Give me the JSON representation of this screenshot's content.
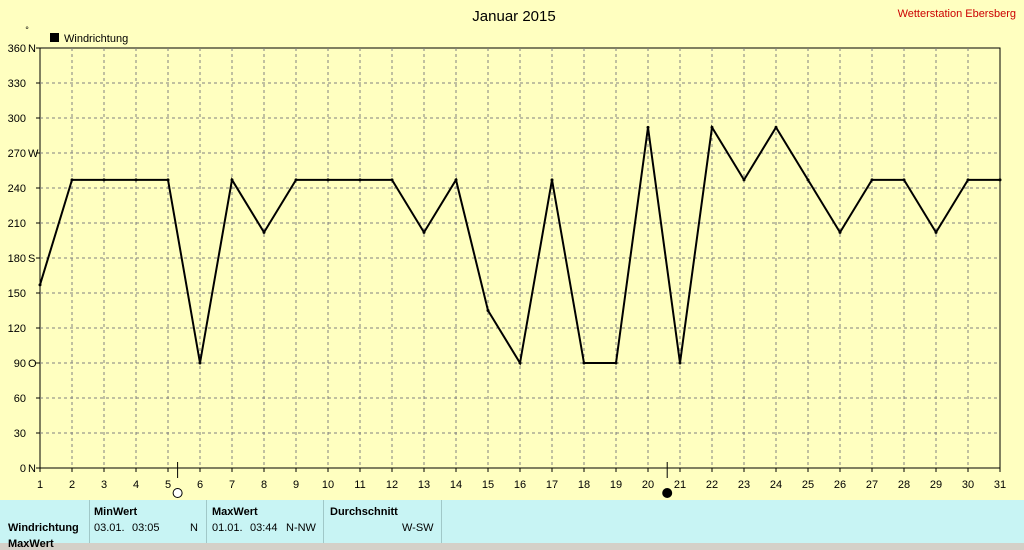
{
  "colors": {
    "plot_bg": "#ffffc0",
    "grid": "#808080",
    "line": "#000000",
    "watermark": "#cc0000",
    "footer_bg": "#c8f4f4"
  },
  "watermark": "Wetterstation Ebersberg",
  "unit_mark": "°",
  "moon_icons": [
    {
      "name": "full-moon-icon",
      "day": 5.3
    },
    {
      "name": "new-moon-icon",
      "day": 20.6
    }
  ],
  "chart_data": {
    "type": "line",
    "title": "Januar 2015",
    "legend": {
      "label": "Windrichtung",
      "position": "top-left"
    },
    "xlabel": "",
    "ylabel": "",
    "x_ticks": [
      1,
      2,
      3,
      4,
      5,
      6,
      7,
      8,
      9,
      10,
      11,
      12,
      13,
      14,
      15,
      16,
      17,
      18,
      19,
      20,
      21,
      22,
      23,
      24,
      25,
      26,
      27,
      28,
      29,
      30,
      31
    ],
    "y_ticks": [
      {
        "value": 360,
        "label": "360",
        "dir": "N"
      },
      {
        "value": 330,
        "label": "330",
        "dir": ""
      },
      {
        "value": 300,
        "label": "300",
        "dir": ""
      },
      {
        "value": 270,
        "label": "270",
        "dir": "W"
      },
      {
        "value": 240,
        "label": "240",
        "dir": ""
      },
      {
        "value": 210,
        "label": "210",
        "dir": ""
      },
      {
        "value": 180,
        "label": "180",
        "dir": "S"
      },
      {
        "value": 150,
        "label": "150",
        "dir": ""
      },
      {
        "value": 120,
        "label": "120",
        "dir": ""
      },
      {
        "value": 90,
        "label": "90",
        "dir": "O"
      },
      {
        "value": 60,
        "label": "60",
        "dir": ""
      },
      {
        "value": 30,
        "label": "30",
        "dir": ""
      },
      {
        "value": 0,
        "label": "0",
        "dir": "N"
      }
    ],
    "xlim": [
      1,
      31
    ],
    "ylim": [
      0,
      360
    ],
    "grid": true,
    "series": [
      {
        "name": "Windrichtung",
        "x": [
          1,
          2,
          3,
          4,
          5,
          6,
          7,
          8,
          9,
          10,
          11,
          12,
          13,
          14,
          15,
          16,
          17,
          18,
          19,
          20,
          21,
          22,
          23,
          24,
          25,
          26,
          27,
          28,
          29,
          30,
          31
        ],
        "y": [
          157,
          247,
          247,
          247,
          247,
          90,
          247,
          202,
          247,
          247,
          247,
          247,
          202,
          247,
          135,
          90,
          247,
          90,
          90,
          292,
          90,
          292,
          247,
          292,
          247,
          202,
          247,
          247,
          202,
          247,
          247
        ]
      }
    ]
  },
  "footer": {
    "row_labels": [
      "Windrichtung",
      "MaxWert"
    ],
    "min": {
      "header": "MinWert",
      "date": "03.01.",
      "time": "03:05",
      "dir": "N"
    },
    "max": {
      "header": "MaxWert",
      "date": "01.01.",
      "time": "03:44",
      "dir": "N-NW"
    },
    "avg": {
      "header": "Durchschnitt",
      "dir": "W-SW"
    }
  }
}
